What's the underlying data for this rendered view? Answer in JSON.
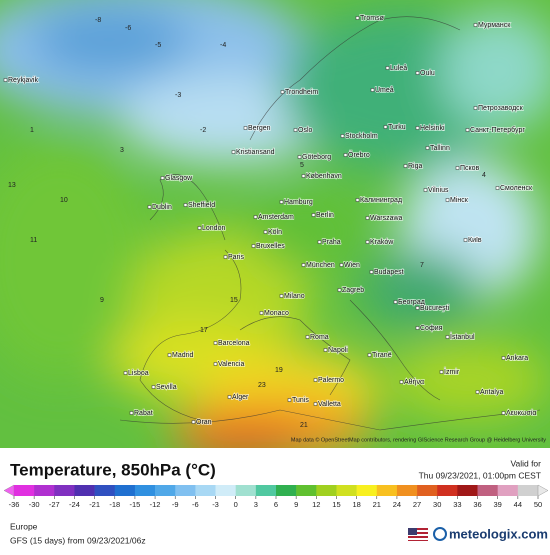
{
  "map": {
    "cities": [
      "Reykjavik",
      "Tromsø",
      "Мурманск",
      "Luleå",
      "Oulu",
      "Trondheim",
      "Umeå",
      "Петрозаводск",
      "Helsinki",
      "Turku",
      "Bergen",
      "Oslo",
      "Stockholm",
      "Санкт-Петербург",
      "Kristiansand",
      "Göteborg",
      "Örebro",
      "Tallinn",
      "Псков",
      "Glasgow",
      "Riga",
      "København",
      "Vilnius",
      "Мінск",
      "Смоленск",
      "Dublin",
      "Sheffield",
      "Hamburg",
      "Berlin",
      "Калининград",
      "Warszawa",
      "Amsterdam",
      "London",
      "Köln",
      "Bruxelles",
      "Praha",
      "Kraków",
      "Київ",
      "Paris",
      "München",
      "Wien",
      "Budapest",
      "Milano",
      "Zagreb",
      "Београд",
      "București",
      "Monaco",
      "Roma",
      "Barcelona",
      "Madrid",
      "Valencia",
      "Lisboa",
      "Sevilla",
      "Napoli",
      "Tiranë",
      "София",
      "İstanbul",
      "Ankara",
      "Palermo",
      "Alger",
      "Tunis",
      "Valletta",
      "Αθήνα",
      "İzmir",
      "Antalya",
      "Λευκωσία",
      "Rabat",
      "Oran"
    ],
    "isotherm_labels": [
      -8,
      -6,
      -5,
      -4,
      -3,
      -2,
      1,
      3,
      13,
      11,
      10,
      15,
      19,
      17,
      23,
      7,
      4,
      5,
      9,
      21
    ],
    "attribution": "Map data © OpenStreetMap contributors, rendering GIScience Research Group @ Heidelberg University"
  },
  "footer": {
    "title": "Temperature, 850hPa (°C)",
    "valid_label": "Valid for",
    "valid_time": "Thu 09/23/2021, 01:00pm CEST",
    "scale": {
      "ticks": [
        -36,
        -30,
        -27,
        -24,
        -21,
        -18,
        -15,
        -12,
        -9,
        -6,
        -3,
        0,
        3,
        6,
        9,
        12,
        15,
        18,
        21,
        24,
        27,
        30,
        33,
        36,
        39,
        44,
        50
      ],
      "colors": [
        "#e030e0",
        "#b030d0",
        "#8030c0",
        "#5030b0",
        "#3050c0",
        "#2070d0",
        "#3090e0",
        "#50a8e8",
        "#80c0f0",
        "#a8d8f4",
        "#d0ecf8",
        "#a0e0d0",
        "#50c8a0",
        "#30b050",
        "#60c030",
        "#a0d020",
        "#d0e020",
        "#f8f020",
        "#f8c020",
        "#f09020",
        "#e06020",
        "#d03020",
        "#a01818",
        "#c06080",
        "#e0a0c0",
        "#d0d0d0"
      ],
      "low_color": "#f060f0",
      "high_color": "#e8e8e8"
    },
    "region": "Europe",
    "model_run": "GFS (15 days) from 09/23/2021/06z",
    "brand": "meteologix.com"
  }
}
